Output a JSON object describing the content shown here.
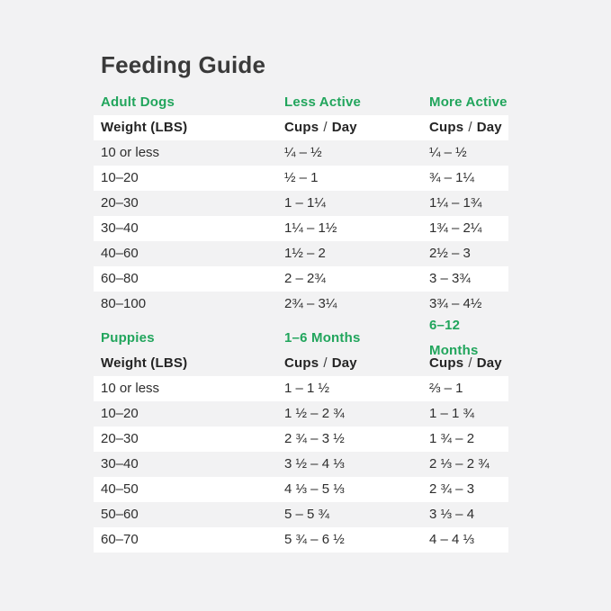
{
  "title": "Feeding Guide",
  "colors": {
    "background": "#f2f2f3",
    "row_band": "#ffffff",
    "accent_green": "#21a55c",
    "text": "#2e2e2e",
    "title_text": "#3a3a3a"
  },
  "labels": {
    "cups_day": {
      "word1": "Cups",
      "sep": "/",
      "word2": "Day"
    }
  },
  "chart_data": [
    {
      "type": "table",
      "section": "Adult Dogs",
      "column_groups": [
        "Less Active",
        "More Active"
      ],
      "subheaders": [
        "Weight (LBS)",
        "Cups / Day",
        "Cups / Day"
      ],
      "rows": [
        [
          "10 or less",
          "¼ – ½",
          "¼ – ½"
        ],
        [
          "10–20",
          "½ – 1",
          "¾ – 1¼"
        ],
        [
          "20–30",
          "1 – 1¼",
          "1¼ – 1¾"
        ],
        [
          "30–40",
          "1¼ – 1½",
          "1¾ – 2¼"
        ],
        [
          "40–60",
          "1½ – 2",
          "2½ – 3"
        ],
        [
          "60–80",
          "2 – 2¾",
          "3 – 3¾"
        ],
        [
          "80–100",
          "2¾ – 3¼",
          "3¾ – 4½"
        ]
      ]
    },
    {
      "type": "table",
      "section": "Puppies",
      "column_groups": [
        "1–6 Months",
        "6–12 Months"
      ],
      "subheaders": [
        "Weight (LBS)",
        "Cups / Day",
        "Cups / Day"
      ],
      "rows": [
        [
          "10 or less",
          "1 – 1 ½",
          "⅔ – 1"
        ],
        [
          "10–20",
          "1 ½ – 2 ¾",
          "1 – 1 ¾"
        ],
        [
          "20–30",
          "2 ¾ – 3 ½",
          "1 ¾ – 2"
        ],
        [
          "30–40",
          "3 ½ – 4 ⅓",
          "2 ⅓ – 2 ¾"
        ],
        [
          "40–50",
          "4 ⅓ – 5 ⅓",
          "2 ¾ – 3"
        ],
        [
          "50–60",
          "5 – 5 ¾",
          "3 ⅓ – 4"
        ],
        [
          "60–70",
          "5 ¾ – 6 ½",
          "4 – 4 ⅓"
        ]
      ]
    }
  ]
}
